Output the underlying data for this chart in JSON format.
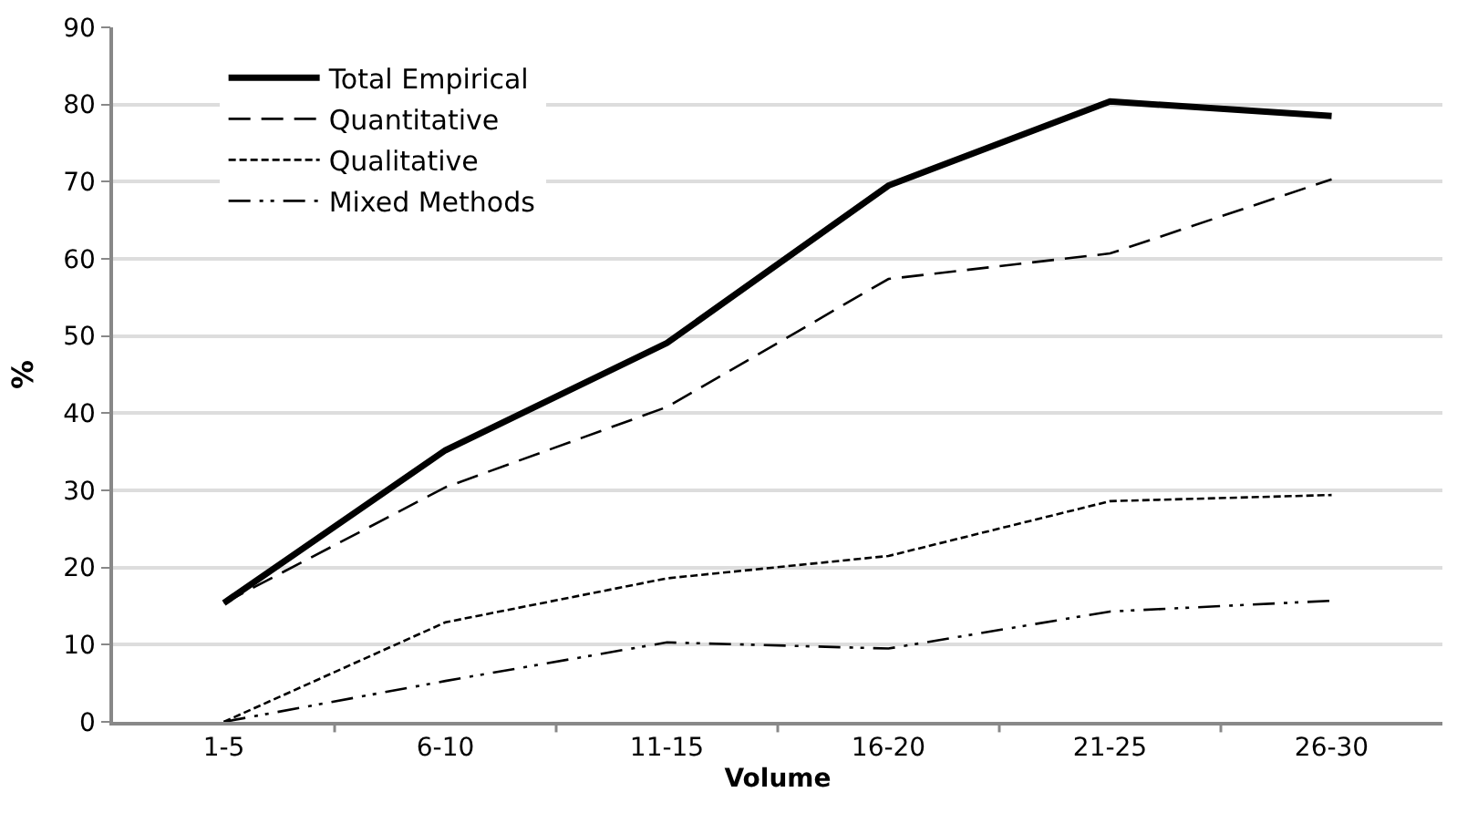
{
  "chart_data": {
    "type": "line",
    "xlabel": "Volume",
    "ylabel": "%",
    "categories": [
      "1-5",
      "6-10",
      "11-15",
      "16-20",
      "21-25",
      "26-30"
    ],
    "series": [
      {
        "name": "Total Empirical",
        "color": "#000000",
        "line_style": "solid",
        "values": [
          15.4,
          35.2,
          49.1,
          69.5,
          80.4,
          78.5
        ]
      },
      {
        "name": "Quantitative",
        "color": "#000000",
        "line_style": "dashed",
        "values": [
          15.4,
          30.4,
          40.8,
          57.4,
          60.7,
          70.3
        ]
      },
      {
        "name": "Qualitative",
        "color": "#000000",
        "line_style": "dotted",
        "values": [
          0,
          12.9,
          18.6,
          21.5,
          28.6,
          29.4
        ]
      },
      {
        "name": "Mixed Methods",
        "color": "#000000",
        "line_style": "dashdotdot",
        "values": [
          0,
          5.3,
          10.3,
          9.5,
          14.3,
          15.7
        ]
      }
    ],
    "ylim": [
      0,
      90
    ],
    "yticks": [
      0,
      10,
      20,
      30,
      40,
      50,
      60,
      70,
      80,
      90
    ],
    "grid": "y",
    "legend": "top left",
    "marker": "none"
  }
}
